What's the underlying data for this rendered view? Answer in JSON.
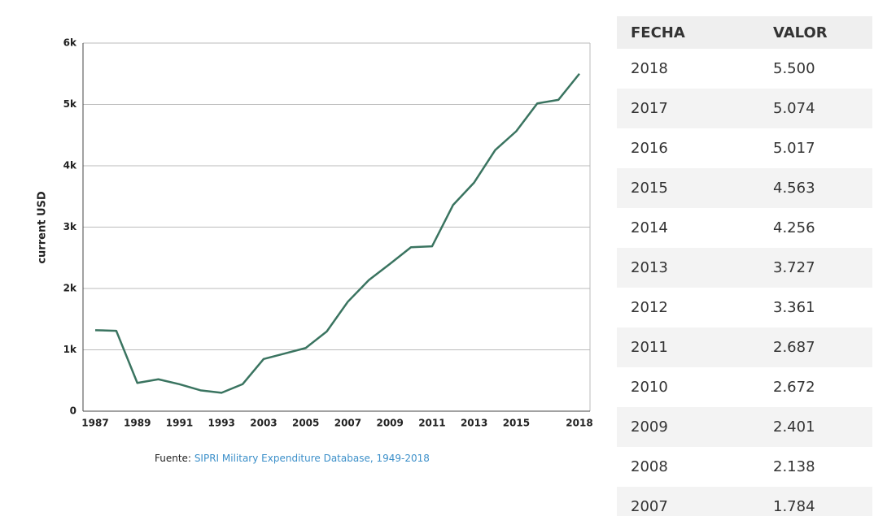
{
  "chart_data": {
    "type": "line",
    "y_label": "current USD",
    "categories": [
      "1987",
      null,
      "1989",
      null,
      "1991",
      null,
      "1993",
      null,
      "2003",
      null,
      "2005",
      null,
      "2007",
      null,
      "2009",
      null,
      "2011",
      null,
      "2013",
      null,
      "2015",
      null,
      null,
      "2018"
    ],
    "series": [
      {
        "name": "current USD",
        "color": "#3a7460",
        "values": [
          1320,
          1310,
          460,
          520,
          440,
          340,
          300,
          440,
          850,
          940,
          1030,
          1300,
          1784,
          2138,
          2401,
          2672,
          2687,
          3361,
          3727,
          4256,
          4563,
          5017,
          5074,
          5500
        ]
      }
    ],
    "ylim": [
      0,
      6000
    ],
    "yticks": [
      0,
      {
        "value": 1000,
        "label": "1k"
      },
      {
        "value": 2000,
        "label": "2k"
      },
      {
        "value": 3000,
        "label": "3k"
      },
      {
        "value": 4000,
        "label": "4k"
      },
      {
        "value": 5000,
        "label": "5k"
      },
      {
        "value": 6000,
        "label": "6k"
      }
    ],
    "grid": true,
    "source": "Fuente:",
    "source_link": "SIPRI Military Expenditure Database, 1949-2018"
  },
  "table": {
    "header": [
      "FECHA",
      "VALOR"
    ],
    "rows": [
      [
        "2018",
        "5.500"
      ],
      [
        "2017",
        "5.074"
      ],
      [
        "2016",
        "5.017"
      ],
      [
        "2015",
        "4.563"
      ],
      [
        "2014",
        "4.256"
      ],
      [
        "2013",
        "3.727"
      ],
      [
        "2012",
        "3.361"
      ],
      [
        "2011",
        "2.687"
      ],
      [
        "2010",
        "2.672"
      ],
      [
        "2009",
        "2.401"
      ],
      [
        "2008",
        "2.138"
      ],
      [
        "2007",
        "1.784"
      ]
    ]
  }
}
